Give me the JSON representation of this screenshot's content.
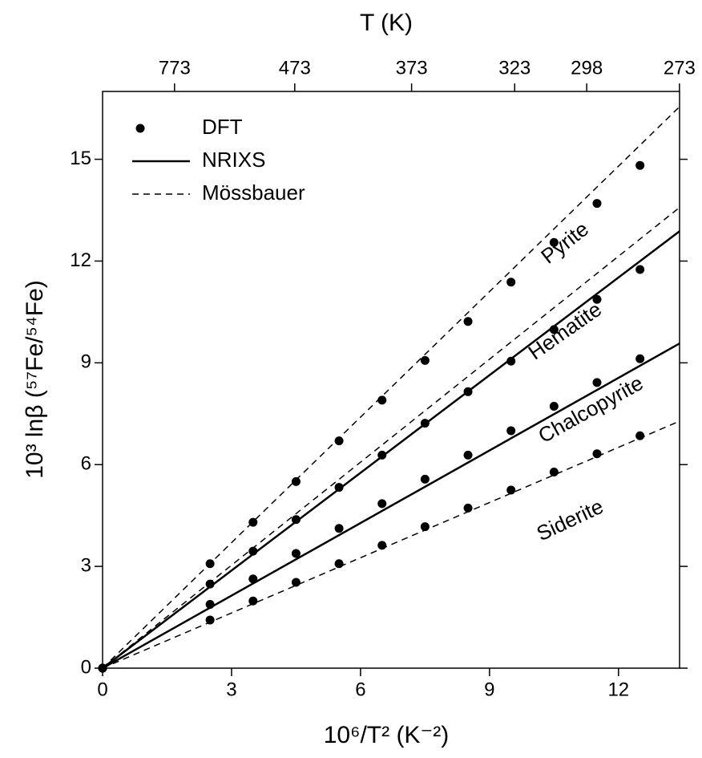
{
  "chart_data": {
    "type": "scatter-line",
    "top_axis_label": "T (K)",
    "x_label": "10⁶/T² (K⁻²)",
    "y_label": "10³ lnβ (⁵⁷Fe/⁵⁴Fe)",
    "xlim": [
      0,
      13.42
    ],
    "ylim": [
      0,
      17
    ],
    "xticks": [
      0,
      3,
      6,
      9,
      12
    ],
    "yticks": [
      0,
      3,
      6,
      9,
      12,
      15
    ],
    "x2scale": "inverse-square",
    "x2ticks": [
      773,
      473,
      373,
      323,
      298,
      273
    ],
    "legend": "upper left",
    "series": [
      {
        "name": "DFT",
        "style": "dot",
        "color": "#000000",
        "x": [
          0,
          2.5,
          3.5,
          4.5,
          5.5,
          6.5,
          7.5,
          8.5,
          9.5,
          10.5,
          11.5,
          12.5
        ],
        "curves": [
          {
            "values": [
              0,
              3.08,
              4.3,
              5.5,
              6.7,
              7.9,
              9.07,
              10.22,
              11.38,
              12.55,
              13.7,
              14.82
            ]
          },
          {
            "values": [
              0,
              2.48,
              3.45,
              4.38,
              5.33,
              6.28,
              7.22,
              8.15,
              9.05,
              9.98,
              10.87,
              11.75
            ]
          },
          {
            "values": [
              0,
              1.88,
              2.63,
              3.38,
              4.12,
              4.85,
              5.57,
              6.28,
              7.0,
              7.72,
              8.42,
              9.12
            ]
          },
          {
            "values": [
              0,
              1.42,
              1.98,
              2.53,
              3.08,
              3.62,
              4.17,
              4.72,
              5.25,
              5.78,
              6.32,
              6.85
            ]
          }
        ]
      },
      {
        "name": "NRIXS",
        "style": "solid",
        "color": "#000000",
        "x": [
          0,
          13.42
        ],
        "curves": [
          {
            "values": [
              0,
              12.88
            ]
          },
          {
            "values": [
              0,
              9.57
            ]
          }
        ]
      },
      {
        "name": "Mössbauer",
        "style": "dashed",
        "color": "#000000",
        "x": [
          0,
          13.42
        ],
        "curves": [
          {
            "values": [
              0,
              16.55
            ]
          },
          {
            "values": [
              0,
              13.58
            ]
          },
          {
            "values": [
              0,
              7.28
            ]
          }
        ]
      }
    ],
    "annotations": [
      "Pyrite",
      "Hematite",
      "Chalcopyrite",
      "Siderite"
    ]
  }
}
